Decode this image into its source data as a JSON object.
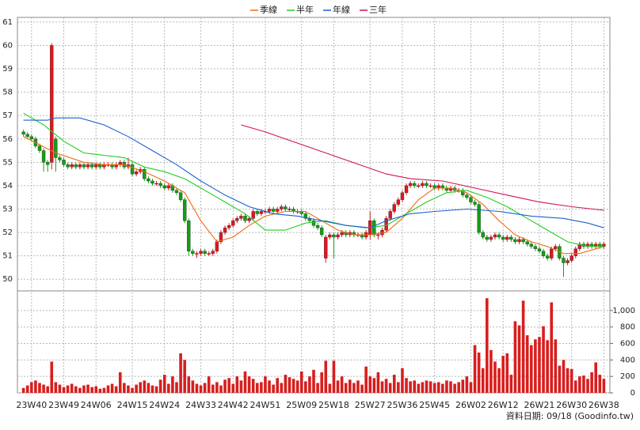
{
  "chart_data": {
    "type": "candlestick",
    "legend": "top",
    "grid": true,
    "series": [
      {
        "name": "季線",
        "color": "#f06a10",
        "x": [
          0,
          8,
          15,
          20,
          25,
          30,
          35,
          40,
          44,
          48,
          52,
          56,
          60,
          65,
          70,
          74,
          78,
          82,
          86,
          90,
          94,
          98,
          102,
          106,
          110,
          114,
          118,
          122,
          126,
          130,
          134,
          138,
          142,
          144
        ],
        "values": [
          56.1,
          55.4,
          55.0,
          54.9,
          54.9,
          54.6,
          54.2,
          53.7,
          52.5,
          51.6,
          51.8,
          52.3,
          52.7,
          52.9,
          52.9,
          52.5,
          52.1,
          51.9,
          51.9,
          52.0,
          52.6,
          53.4,
          53.9,
          53.9,
          53.7,
          53.2,
          52.5,
          51.9,
          51.6,
          51.4,
          51.1,
          51.1,
          51.3,
          51.4
        ]
      },
      {
        "name": "半年",
        "color": "#22cc22",
        "x": [
          0,
          5,
          10,
          15,
          20,
          25,
          30,
          35,
          40,
          45,
          50,
          55,
          60,
          65,
          70,
          75,
          80,
          85,
          90,
          95,
          100,
          105,
          110,
          115,
          120,
          125,
          130,
          135,
          140,
          144
        ],
        "values": [
          57.1,
          56.6,
          55.9,
          55.4,
          55.3,
          55.2,
          54.8,
          54.6,
          54.3,
          53.8,
          53.3,
          52.8,
          52.1,
          52.1,
          52.4,
          52.5,
          52.3,
          52.2,
          52.3,
          52.8,
          53.3,
          53.7,
          53.8,
          53.5,
          53.1,
          52.6,
          52.1,
          51.6,
          51.4,
          51.4
        ]
      },
      {
        "name": "年線",
        "color": "#1a5fd0",
        "x": [
          0,
          6,
          8,
          14,
          20,
          26,
          32,
          38,
          44,
          50,
          56,
          62,
          68,
          74,
          80,
          86,
          90,
          96,
          102,
          110,
          118,
          126,
          134,
          140,
          144
        ],
        "values": [
          56.8,
          56.8,
          56.9,
          56.9,
          56.6,
          56.1,
          55.5,
          54.9,
          54.2,
          53.6,
          53.1,
          52.8,
          52.7,
          52.5,
          52.3,
          52.2,
          52.5,
          52.8,
          52.9,
          53.0,
          52.9,
          52.7,
          52.6,
          52.4,
          52.2
        ]
      },
      {
        "name": "三年",
        "color": "#d0105a",
        "x": [
          54,
          60,
          70,
          80,
          90,
          96,
          104,
          112,
          120,
          128,
          136,
          144
        ],
        "values": [
          56.6,
          56.3,
          55.7,
          55.1,
          54.5,
          54.3,
          54.2,
          53.9,
          53.6,
          53.3,
          53.1,
          52.95
        ]
      }
    ],
    "up_color": "#e0161e",
    "down_color": "#10a010",
    "ohlc": [
      [
        56.3,
        56.4,
        56.1,
        56.2
      ],
      [
        56.2,
        56.3,
        56.0,
        56.1
      ],
      [
        56.1,
        56.2,
        55.9,
        56.0
      ],
      [
        56.0,
        56.1,
        55.6,
        55.7
      ],
      [
        55.7,
        55.8,
        55.4,
        55.5
      ],
      [
        55.5,
        55.6,
        54.6,
        55.0
      ],
      [
        55.0,
        55.1,
        54.6,
        54.9
      ],
      [
        55.0,
        60.1,
        54.7,
        60.0
      ],
      [
        56.0,
        56.1,
        54.6,
        55.2
      ],
      [
        55.2,
        55.3,
        55.0,
        55.1
      ],
      [
        55.1,
        55.2,
        54.8,
        54.9
      ],
      [
        54.9,
        55.0,
        54.7,
        54.8
      ],
      [
        54.8,
        55.0,
        54.7,
        54.9
      ],
      [
        54.9,
        55.0,
        54.7,
        54.8
      ],
      [
        54.8,
        55.0,
        54.7,
        54.9
      ],
      [
        54.9,
        55.0,
        54.7,
        54.8
      ],
      [
        54.8,
        55.0,
        54.7,
        54.9
      ],
      [
        54.9,
        55.0,
        54.7,
        54.8
      ],
      [
        54.8,
        55.0,
        54.7,
        54.9
      ],
      [
        54.9,
        55.0,
        54.7,
        54.8
      ],
      [
        54.8,
        55.0,
        54.7,
        54.9
      ],
      [
        54.9,
        55.0,
        54.8,
        54.9
      ],
      [
        54.9,
        55.0,
        54.7,
        54.8
      ],
      [
        54.8,
        55.0,
        54.7,
        54.9
      ],
      [
        54.9,
        55.1,
        54.8,
        55.0
      ],
      [
        55.0,
        55.1,
        54.7,
        54.8
      ],
      [
        54.8,
        55.2,
        54.7,
        54.9
      ],
      [
        54.9,
        55.0,
        54.4,
        54.5
      ],
      [
        54.5,
        54.7,
        54.4,
        54.6
      ],
      [
        54.6,
        54.8,
        54.5,
        54.7
      ],
      [
        54.7,
        54.8,
        54.2,
        54.3
      ],
      [
        54.3,
        54.4,
        54.1,
        54.2
      ],
      [
        54.2,
        54.3,
        54.0,
        54.1
      ],
      [
        54.1,
        54.2,
        54.0,
        54.1
      ],
      [
        54.1,
        54.2,
        53.9,
        54.0
      ],
      [
        54.0,
        54.1,
        53.8,
        53.9
      ],
      [
        53.9,
        54.1,
        53.8,
        54.0
      ],
      [
        54.0,
        54.1,
        53.7,
        53.8
      ],
      [
        53.8,
        53.9,
        53.6,
        53.7
      ],
      [
        53.7,
        53.8,
        53.3,
        53.4
      ],
      [
        53.4,
        53.5,
        52.4,
        52.5
      ],
      [
        52.5,
        52.6,
        51.0,
        51.2
      ],
      [
        51.2,
        51.3,
        51.0,
        51.1
      ],
      [
        51.1,
        51.2,
        50.9,
        51.1
      ],
      [
        51.1,
        51.3,
        51.0,
        51.2
      ],
      [
        51.2,
        51.3,
        51.0,
        51.1
      ],
      [
        51.1,
        51.2,
        51.0,
        51.1
      ],
      [
        51.1,
        51.3,
        51.0,
        51.2
      ],
      [
        51.2,
        51.7,
        51.1,
        51.6
      ],
      [
        51.6,
        52.1,
        51.5,
        52.0
      ],
      [
        52.0,
        52.3,
        51.9,
        52.2
      ],
      [
        52.2,
        52.4,
        52.1,
        52.3
      ],
      [
        52.3,
        52.6,
        52.2,
        52.5
      ],
      [
        52.5,
        52.7,
        52.4,
        52.6
      ],
      [
        52.6,
        52.8,
        52.5,
        52.7
      ],
      [
        52.7,
        52.8,
        52.4,
        52.5
      ],
      [
        52.5,
        52.7,
        52.4,
        52.6
      ],
      [
        52.6,
        53.0,
        52.5,
        52.9
      ],
      [
        52.9,
        53.0,
        52.7,
        52.8
      ],
      [
        52.8,
        53.0,
        52.7,
        52.9
      ],
      [
        52.9,
        53.0,
        52.8,
        52.9
      ],
      [
        52.9,
        53.1,
        52.8,
        53.0
      ],
      [
        53.0,
        53.1,
        52.8,
        52.9
      ],
      [
        52.9,
        53.1,
        52.8,
        53.0
      ],
      [
        53.0,
        53.2,
        52.9,
        53.1
      ],
      [
        53.1,
        53.2,
        52.9,
        53.0
      ],
      [
        53.0,
        53.1,
        52.9,
        53.0
      ],
      [
        53.0,
        53.1,
        52.8,
        52.9
      ],
      [
        52.9,
        53.0,
        52.8,
        52.9
      ],
      [
        52.9,
        53.0,
        52.7,
        52.8
      ],
      [
        52.8,
        52.9,
        52.5,
        52.6
      ],
      [
        52.6,
        52.7,
        52.4,
        52.5
      ],
      [
        52.5,
        52.6,
        52.2,
        52.3
      ],
      [
        52.3,
        52.4,
        52.1,
        52.2
      ],
      [
        52.2,
        52.3,
        51.8,
        51.9
      ],
      [
        50.9,
        51.9,
        50.7,
        51.8
      ],
      [
        51.8,
        52.0,
        51.7,
        51.9
      ],
      [
        51.9,
        52.0,
        50.9,
        51.8
      ],
      [
        51.8,
        52.0,
        51.7,
        51.9
      ],
      [
        51.9,
        52.1,
        51.8,
        52.0
      ],
      [
        52.0,
        52.1,
        51.8,
        51.9
      ],
      [
        51.9,
        52.1,
        51.8,
        52.0
      ],
      [
        52.0,
        52.1,
        51.8,
        51.9
      ],
      [
        51.9,
        52.0,
        51.8,
        51.9
      ],
      [
        51.9,
        52.0,
        51.7,
        51.8
      ],
      [
        51.8,
        52.1,
        51.7,
        52.0
      ],
      [
        51.9,
        52.9,
        51.7,
        52.5
      ],
      [
        52.5,
        52.6,
        51.8,
        51.9
      ],
      [
        51.9,
        52.0,
        51.7,
        51.9
      ],
      [
        51.9,
        52.2,
        51.8,
        52.1
      ],
      [
        52.1,
        52.7,
        52.0,
        52.6
      ],
      [
        52.6,
        53.0,
        52.5,
        52.9
      ],
      [
        52.9,
        53.3,
        52.8,
        53.2
      ],
      [
        53.2,
        53.5,
        53.1,
        53.4
      ],
      [
        53.4,
        53.8,
        53.3,
        53.7
      ],
      [
        53.7,
        54.1,
        53.6,
        54.0
      ],
      [
        54.0,
        54.2,
        53.9,
        54.1
      ],
      [
        54.1,
        54.2,
        53.9,
        54.0
      ],
      [
        54.0,
        54.1,
        53.9,
        54.0
      ],
      [
        54.0,
        54.2,
        53.9,
        54.1
      ],
      [
        54.1,
        54.2,
        53.9,
        54.0
      ],
      [
        54.0,
        54.1,
        53.9,
        54.0
      ],
      [
        54.0,
        54.1,
        53.8,
        53.9
      ],
      [
        53.9,
        54.1,
        53.8,
        54.0
      ],
      [
        54.0,
        54.1,
        53.8,
        53.9
      ],
      [
        53.9,
        54.0,
        53.7,
        53.8
      ],
      [
        53.8,
        54.0,
        53.7,
        53.9
      ],
      [
        53.9,
        54.0,
        53.7,
        53.8
      ],
      [
        53.8,
        53.9,
        53.7,
        53.8
      ],
      [
        53.8,
        53.9,
        53.5,
        53.6
      ],
      [
        53.6,
        53.7,
        53.4,
        53.5
      ],
      [
        53.5,
        53.6,
        53.2,
        53.3
      ],
      [
        53.3,
        53.4,
        53.1,
        53.2
      ],
      [
        53.2,
        53.3,
        51.9,
        52.0
      ],
      [
        52.0,
        52.1,
        51.7,
        51.8
      ],
      [
        51.8,
        51.9,
        51.6,
        51.7
      ],
      [
        51.7,
        51.9,
        51.6,
        51.8
      ],
      [
        51.8,
        52.0,
        51.7,
        51.9
      ],
      [
        51.9,
        52.0,
        51.7,
        51.8
      ],
      [
        51.8,
        51.9,
        51.6,
        51.7
      ],
      [
        51.7,
        51.9,
        51.6,
        51.8
      ],
      [
        51.8,
        51.9,
        51.6,
        51.7
      ],
      [
        51.7,
        51.8,
        51.5,
        51.6
      ],
      [
        51.6,
        51.8,
        51.5,
        51.7
      ],
      [
        51.7,
        51.8,
        51.5,
        51.6
      ],
      [
        51.6,
        51.7,
        51.4,
        51.5
      ],
      [
        51.5,
        51.6,
        51.3,
        51.4
      ],
      [
        51.4,
        51.5,
        51.2,
        51.3
      ],
      [
        51.3,
        51.4,
        51.1,
        51.2
      ],
      [
        51.2,
        51.3,
        50.9,
        51.0
      ],
      [
        51.0,
        51.1,
        50.8,
        50.9
      ],
      [
        50.9,
        51.4,
        50.8,
        51.3
      ],
      [
        51.3,
        51.5,
        51.2,
        51.4
      ],
      [
        51.4,
        51.5,
        50.8,
        50.9
      ],
      [
        50.9,
        51.0,
        50.1,
        50.7
      ],
      [
        50.7,
        50.9,
        50.6,
        50.8
      ],
      [
        50.8,
        51.1,
        50.7,
        51.0
      ],
      [
        51.0,
        51.4,
        50.9,
        51.3
      ],
      [
        51.3,
        51.6,
        51.2,
        51.5
      ],
      [
        51.5,
        51.6,
        51.3,
        51.4
      ],
      [
        51.4,
        51.6,
        51.3,
        51.5
      ],
      [
        51.5,
        51.6,
        51.3,
        51.4
      ],
      [
        51.4,
        51.6,
        51.3,
        51.5
      ],
      [
        51.5,
        51.6,
        51.3,
        51.4
      ],
      [
        51.4,
        51.6,
        51.3,
        51.5
      ]
    ],
    "volume": {
      "color": "#d81e1e",
      "ylim": [
        0,
        1220
      ],
      "yticks": [
        0,
        200,
        400,
        600,
        800,
        {
          "value": 1000,
          "label": "1,000"
        }
      ],
      "values": [
        60,
        90,
        130,
        150,
        120,
        100,
        80,
        380,
        130,
        100,
        70,
        90,
        110,
        80,
        60,
        90,
        100,
        70,
        80,
        50,
        60,
        90,
        110,
        80,
        250,
        120,
        90,
        60,
        100,
        130,
        150,
        120,
        90,
        80,
        160,
        220,
        110,
        200,
        130,
        480,
        400,
        200,
        150,
        110,
        90,
        120,
        200,
        100,
        130,
        90,
        160,
        180,
        110,
        200,
        150,
        260,
        200,
        170,
        120,
        130,
        200,
        150,
        100,
        180,
        120,
        220,
        190,
        170,
        150,
        260,
        140,
        200,
        280,
        120,
        250,
        390,
        110,
        390,
        150,
        200,
        120,
        160,
        120,
        150,
        100,
        320,
        200,
        180,
        250,
        140,
        170,
        120,
        220,
        130,
        300,
        180,
        140,
        150,
        110,
        130,
        150,
        140,
        120,
        130,
        110,
        150,
        140,
        110,
        130,
        160,
        200,
        130,
        580,
        490,
        300,
        1150,
        520,
        380,
        300,
        450,
        480,
        220,
        870,
        820,
        1120,
        700,
        580,
        650,
        680,
        810,
        640,
        1100,
        650,
        330,
        400,
        300,
        290,
        150,
        200,
        210,
        170,
        250,
        370,
        220,
        170
      ]
    },
    "xlim": [
      -1.5,
      145.5
    ],
    "xticks": [
      {
        "value": 2,
        "label": "23W40"
      },
      {
        "value": 10,
        "label": "23W49"
      },
      {
        "value": 18,
        "label": "24W06"
      },
      {
        "value": 27,
        "label": "24W15"
      },
      {
        "value": 35,
        "label": "24W24"
      },
      {
        "value": 44,
        "label": "24W33"
      },
      {
        "value": 52,
        "label": "24W42"
      },
      {
        "value": 60,
        "label": "24W51"
      },
      {
        "value": 69,
        "label": "25W09"
      },
      {
        "value": 77,
        "label": "25W18"
      },
      {
        "value": 86,
        "label": "25W27"
      },
      {
        "value": 94,
        "label": "25W36"
      },
      {
        "value": 102,
        "label": "25W45"
      },
      {
        "value": 111,
        "label": "26W02"
      },
      {
        "value": 119,
        "label": "26W12"
      },
      {
        "value": 128,
        "label": "26W21"
      },
      {
        "value": 136,
        "label": "26W30"
      },
      {
        "value": 144,
        "label": "26W38"
      }
    ],
    "ylim": [
      49.5,
      61.2
    ],
    "yticks": [
      50,
      51,
      52,
      53,
      54,
      55,
      56,
      57,
      58,
      59,
      60,
      61
    ],
    "footer": "資料日期: 09/18 (Goodinfo.tw)"
  }
}
